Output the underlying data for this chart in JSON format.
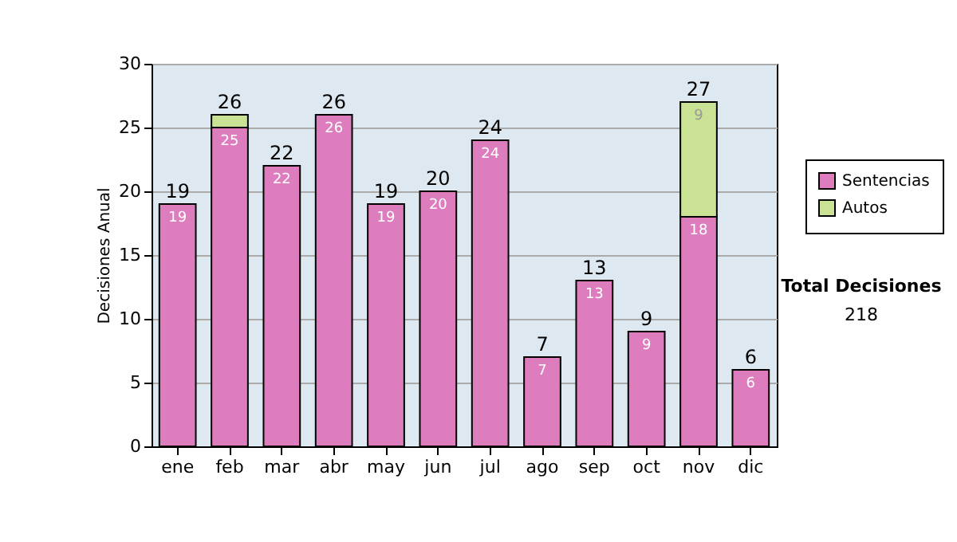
{
  "chart_data": {
    "type": "bar",
    "ylabel": "Decisiones Anual",
    "categories": [
      "ene",
      "feb",
      "mar",
      "abr",
      "may",
      "jun",
      "jul",
      "ago",
      "sep",
      "oct",
      "nov",
      "dic"
    ],
    "series": [
      {
        "name": "Sentencias",
        "color": "#dd7dbd",
        "values": [
          19,
          25,
          22,
          26,
          19,
          20,
          24,
          7,
          13,
          9,
          18,
          6
        ],
        "value_labels": [
          "19",
          "25",
          "22",
          "26",
          "19",
          "20",
          "24",
          "7",
          "13",
          "9",
          "18",
          "6"
        ]
      },
      {
        "name": "Autos",
        "color": "#c9e293",
        "values": [
          null,
          1,
          null,
          null,
          null,
          null,
          null,
          null,
          null,
          null,
          9,
          null
        ],
        "value_labels": [
          null,
          null,
          null,
          null,
          null,
          null,
          null,
          null,
          null,
          null,
          "9",
          null
        ]
      }
    ],
    "stacked": true,
    "totals": [
      "19",
      "26",
      "22",
      "26",
      "19",
      "20",
      "24",
      "7",
      "13",
      "9",
      "27",
      "6"
    ],
    "ylim": [
      0,
      30
    ],
    "yticks": [
      0,
      5,
      10,
      15,
      20,
      25,
      30
    ],
    "grid": "y",
    "legend": "right",
    "annotations": [
      "Total Decisiones",
      "218"
    ]
  }
}
